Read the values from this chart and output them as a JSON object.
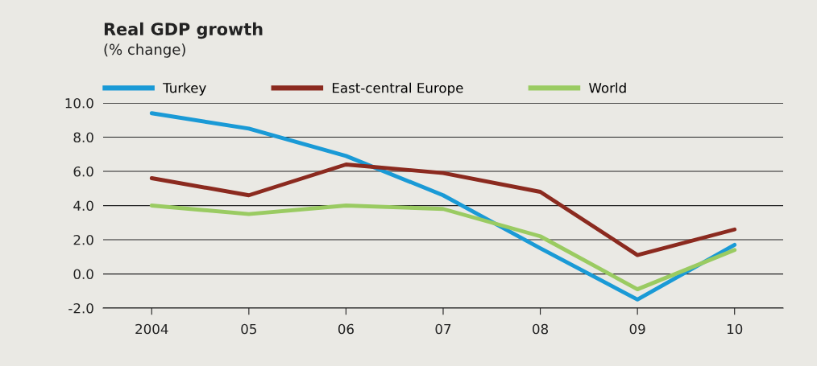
{
  "chart_data": {
    "type": "line",
    "title": "Real GDP growth",
    "subtitle": "(% change)",
    "categories": [
      "2004",
      "05",
      "06",
      "07",
      "08",
      "09",
      "10"
    ],
    "series": [
      {
        "name": "Turkey",
        "color": "#1a9ad6",
        "values": [
          9.4,
          8.5,
          6.9,
          4.6,
          1.5,
          -1.5,
          1.7
        ]
      },
      {
        "name": "East-central Europe",
        "color": "#8b2a1f",
        "values": [
          5.6,
          4.6,
          6.4,
          5.9,
          4.8,
          1.1,
          2.6
        ]
      },
      {
        "name": "World",
        "color": "#9acb62",
        "values": [
          4.0,
          3.5,
          4.0,
          3.8,
          2.2,
          -0.9,
          1.4
        ]
      }
    ],
    "ylim": [
      -2,
      10
    ],
    "yticks": [
      {
        "value": -2,
        "label": "-2.0"
      },
      {
        "value": 0,
        "label": "0.0"
      },
      {
        "value": 2,
        "label": "2.0"
      },
      {
        "value": 4,
        "label": "4.0"
      },
      {
        "value": 6,
        "label": "6.0"
      },
      {
        "value": 8,
        "label": "8.0"
      },
      {
        "value": 10,
        "label": "10.0"
      }
    ],
    "grid": "y",
    "legend": "top",
    "marker": "none",
    "line_style": "solid"
  }
}
